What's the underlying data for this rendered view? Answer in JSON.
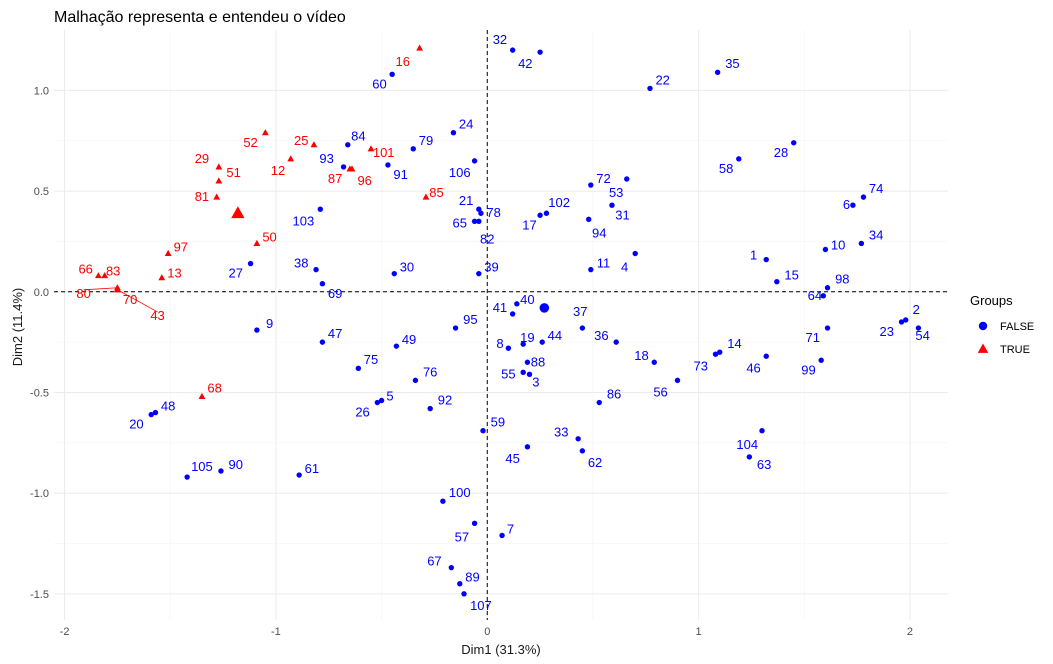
{
  "chart_data": {
    "type": "scatter",
    "title": "Malhação representa e entendeu o vídeo",
    "xlabel": "Dim1 (31.3%)",
    "ylabel": "Dim2 (11.4%)",
    "xlim": [
      -2.05,
      2.18
    ],
    "ylim": [
      -1.63,
      1.3
    ],
    "xticks": [
      -2,
      -1,
      0,
      1,
      2
    ],
    "yticks": [
      -1.5,
      -1.0,
      -0.5,
      0.0,
      0.5,
      1.0
    ],
    "xtick_labels": [
      "-2",
      "-1",
      "0",
      "1",
      "2"
    ],
    "ytick_labels": [
      "-1.5",
      "-1.0",
      "-0.5",
      "0.0",
      "0.5",
      "1.0"
    ],
    "reference_lines": {
      "x": 0,
      "y": 0
    },
    "grid": true,
    "legend": {
      "title": "Groups",
      "position": "right",
      "entries": [
        "FALSE",
        "TRUE"
      ]
    },
    "colors": {
      "FALSE": "#0000ff",
      "TRUE": "#ff0000"
    },
    "centroids": [
      {
        "group": "FALSE",
        "x": 0.27,
        "y": -0.08
      },
      {
        "group": "TRUE",
        "x": -1.18,
        "y": 0.39
      }
    ],
    "series": [
      {
        "name": "FALSE",
        "points": [
          {
            "id": "32",
            "x": 0.12,
            "y": 1.2,
            "lx": 0.06,
            "ly": 1.25
          },
          {
            "id": "42",
            "x": 0.25,
            "y": 1.19,
            "lx": 0.18,
            "ly": 1.13
          },
          {
            "id": "35",
            "x": 1.09,
            "y": 1.09,
            "lx": 1.16,
            "ly": 1.13
          },
          {
            "id": "60",
            "x": -0.45,
            "y": 1.08,
            "lx": -0.51,
            "ly": 1.03
          },
          {
            "id": "22",
            "x": 0.77,
            "y": 1.01,
            "lx": 0.83,
            "ly": 1.05
          },
          {
            "id": "24",
            "x": -0.16,
            "y": 0.79,
            "lx": -0.1,
            "ly": 0.83
          },
          {
            "id": "28",
            "x": 1.45,
            "y": 0.74,
            "lx": 1.39,
            "ly": 0.69
          },
          {
            "id": "84",
            "x": -0.66,
            "y": 0.73,
            "lx": -0.61,
            "ly": 0.77
          },
          {
            "id": "79",
            "x": -0.35,
            "y": 0.71,
            "lx": -0.29,
            "ly": 0.75
          },
          {
            "id": "93",
            "x": -0.68,
            "y": 0.62,
            "lx": -0.76,
            "ly": 0.66
          },
          {
            "id": "106",
            "x": -0.06,
            "y": 0.65,
            "lx": -0.13,
            "ly": 0.59
          },
          {
            "id": "91",
            "x": -0.47,
            "y": 0.63,
            "lx": -0.41,
            "ly": 0.58
          },
          {
            "id": "58",
            "x": 1.19,
            "y": 0.66,
            "lx": 1.13,
            "ly": 0.61
          },
          {
            "id": "72",
            "x": 0.49,
            "y": 0.53,
            "lx": 0.55,
            "ly": 0.56
          },
          {
            "id": "53",
            "x": 0.66,
            "y": 0.56,
            "lx": 0.61,
            "ly": 0.49
          },
          {
            "id": "74",
            "x": 1.78,
            "y": 0.47,
            "lx": 1.84,
            "ly": 0.51
          },
          {
            "id": "6",
            "x": 1.73,
            "y": 0.43,
            "lx": 1.7,
            "ly": 0.43
          },
          {
            "id": "21",
            "x": -0.04,
            "y": 0.41,
            "lx": -0.1,
            "ly": 0.45
          },
          {
            "id": "102",
            "x": 0.28,
            "y": 0.39,
            "lx": 0.34,
            "ly": 0.44
          },
          {
            "id": "31",
            "x": 0.59,
            "y": 0.43,
            "lx": 0.64,
            "ly": 0.38
          },
          {
            "id": "78",
            "x": -0.03,
            "y": 0.39,
            "lx": 0.03,
            "ly": 0.39
          },
          {
            "id": "103",
            "x": -0.79,
            "y": 0.41,
            "lx": -0.87,
            "ly": 0.35
          },
          {
            "id": "17",
            "x": 0.25,
            "y": 0.38,
            "lx": 0.2,
            "ly": 0.33
          },
          {
            "id": "65",
            "x": -0.06,
            "y": 0.35,
            "lx": -0.13,
            "ly": 0.34
          },
          {
            "id": "94",
            "x": 0.48,
            "y": 0.36,
            "lx": 0.53,
            "ly": 0.29
          },
          {
            "id": "82",
            "x": -0.04,
            "y": 0.35,
            "lx": 0.0,
            "ly": 0.26
          },
          {
            "id": "34",
            "x": 1.77,
            "y": 0.24,
            "lx": 1.84,
            "ly": 0.28
          },
          {
            "id": "10",
            "x": 1.6,
            "y": 0.21,
            "lx": 1.66,
            "ly": 0.23
          },
          {
            "id": "1",
            "x": 1.32,
            "y": 0.16,
            "lx": 1.26,
            "ly": 0.18
          },
          {
            "id": "11",
            "x": 0.49,
            "y": 0.11,
            "lx": 0.55,
            "ly": 0.14
          },
          {
            "id": "4",
            "x": 0.7,
            "y": 0.19,
            "lx": 0.65,
            "ly": 0.12
          },
          {
            "id": "27",
            "x": -1.12,
            "y": 0.14,
            "lx": -1.19,
            "ly": 0.09
          },
          {
            "id": "38",
            "x": -0.81,
            "y": 0.11,
            "lx": -0.88,
            "ly": 0.14
          },
          {
            "id": "30",
            "x": -0.44,
            "y": 0.09,
            "lx": -0.38,
            "ly": 0.12
          },
          {
            "id": "39",
            "x": -0.04,
            "y": 0.09,
            "lx": 0.02,
            "ly": 0.12
          },
          {
            "id": "15",
            "x": 1.37,
            "y": 0.05,
            "lx": 1.44,
            "ly": 0.08
          },
          {
            "id": "98",
            "x": 1.61,
            "y": 0.02,
            "lx": 1.68,
            "ly": 0.06
          },
          {
            "id": "64",
            "x": 1.59,
            "y": -0.02,
            "lx": 1.55,
            "ly": -0.02
          },
          {
            "id": "69",
            "x": -0.78,
            "y": 0.04,
            "lx": -0.72,
            "ly": -0.01
          },
          {
            "id": "40",
            "x": 0.14,
            "y": -0.06,
            "lx": 0.19,
            "ly": -0.04
          },
          {
            "id": "41",
            "x": 0.12,
            "y": -0.11,
            "lx": 0.06,
            "ly": -0.08
          },
          {
            "id": "37",
            "x": 0.45,
            "y": -0.18,
            "lx": 0.44,
            "ly": -0.1
          },
          {
            "id": "95",
            "x": -0.15,
            "y": -0.18,
            "lx": -0.08,
            "ly": -0.14
          },
          {
            "id": "9",
            "x": -1.09,
            "y": -0.19,
            "lx": -1.03,
            "ly": -0.16
          },
          {
            "id": "71",
            "x": 1.61,
            "y": -0.18,
            "lx": 1.54,
            "ly": -0.23
          },
          {
            "id": "2",
            "x": 1.98,
            "y": -0.14,
            "lx": 2.03,
            "ly": -0.09
          },
          {
            "id": "23",
            "x": 1.96,
            "y": -0.15,
            "lx": 1.89,
            "ly": -0.2
          },
          {
            "id": "54",
            "x": 2.04,
            "y": -0.18,
            "lx": 2.06,
            "ly": -0.22
          },
          {
            "id": "47",
            "x": -0.78,
            "y": -0.25,
            "lx": -0.72,
            "ly": -0.21
          },
          {
            "id": "36",
            "x": 0.61,
            "y": -0.25,
            "lx": 0.54,
            "ly": -0.22
          },
          {
            "id": "19",
            "x": 0.17,
            "y": -0.26,
            "lx": 0.19,
            "ly": -0.23
          },
          {
            "id": "44",
            "x": 0.26,
            "y": -0.25,
            "lx": 0.32,
            "ly": -0.22
          },
          {
            "id": "8",
            "x": 0.1,
            "y": -0.28,
            "lx": 0.06,
            "ly": -0.26
          },
          {
            "id": "49",
            "x": -0.43,
            "y": -0.27,
            "lx": -0.37,
            "ly": -0.24
          },
          {
            "id": "14",
            "x": 1.1,
            "y": -0.3,
            "lx": 1.17,
            "ly": -0.26
          },
          {
            "id": "18",
            "x": 0.79,
            "y": -0.35,
            "lx": 0.73,
            "ly": -0.32
          },
          {
            "id": "88",
            "x": 0.19,
            "y": -0.35,
            "lx": 0.24,
            "ly": -0.35
          },
          {
            "id": "75",
            "x": -0.61,
            "y": -0.38,
            "lx": -0.55,
            "ly": -0.34
          },
          {
            "id": "46",
            "x": 1.32,
            "y": -0.32,
            "lx": 1.26,
            "ly": -0.38
          },
          {
            "id": "73",
            "x": 1.08,
            "y": -0.31,
            "lx": 1.01,
            "ly": -0.37
          },
          {
            "id": "99",
            "x": 1.58,
            "y": -0.34,
            "lx": 1.52,
            "ly": -0.39
          },
          {
            "id": "55",
            "x": 0.17,
            "y": -0.4,
            "lx": 0.1,
            "ly": -0.41
          },
          {
            "id": "76",
            "x": -0.34,
            "y": -0.44,
            "lx": -0.27,
            "ly": -0.4
          },
          {
            "id": "3",
            "x": 0.2,
            "y": -0.41,
            "lx": 0.23,
            "ly": -0.45
          },
          {
            "id": "56",
            "x": 0.9,
            "y": -0.44,
            "lx": 0.82,
            "ly": -0.5
          },
          {
            "id": "86",
            "x": 0.53,
            "y": -0.55,
            "lx": 0.6,
            "ly": -0.51
          },
          {
            "id": "5",
            "x": -0.5,
            "y": -0.54,
            "lx": -0.46,
            "ly": -0.52
          },
          {
            "id": "92",
            "x": -0.27,
            "y": -0.58,
            "lx": -0.2,
            "ly": -0.54
          },
          {
            "id": "26",
            "x": -0.52,
            "y": -0.55,
            "lx": -0.59,
            "ly": -0.6
          },
          {
            "id": "48",
            "x": -1.57,
            "y": -0.6,
            "lx": -1.51,
            "ly": -0.57
          },
          {
            "id": "20",
            "x": -1.59,
            "y": -0.61,
            "lx": -1.66,
            "ly": -0.66
          },
          {
            "id": "59",
            "x": -0.02,
            "y": -0.69,
            "lx": 0.05,
            "ly": -0.65
          },
          {
            "id": "33",
            "x": 0.43,
            "y": -0.73,
            "lx": 0.35,
            "ly": -0.7
          },
          {
            "id": "104",
            "x": 1.3,
            "y": -0.69,
            "lx": 1.23,
            "ly": -0.76
          },
          {
            "id": "45",
            "x": 0.19,
            "y": -0.77,
            "lx": 0.12,
            "ly": -0.83
          },
          {
            "id": "62",
            "x": 0.45,
            "y": -0.79,
            "lx": 0.51,
            "ly": -0.85
          },
          {
            "id": "63",
            "x": 1.24,
            "y": -0.82,
            "lx": 1.31,
            "ly": -0.86
          },
          {
            "id": "90",
            "x": -1.26,
            "y": -0.89,
            "lx": -1.19,
            "ly": -0.86
          },
          {
            "id": "105",
            "x": -1.42,
            "y": -0.92,
            "lx": -1.35,
            "ly": -0.87
          },
          {
            "id": "61",
            "x": -0.89,
            "y": -0.91,
            "lx": -0.83,
            "ly": -0.88
          },
          {
            "id": "100",
            "x": -0.21,
            "y": -1.04,
            "lx": -0.13,
            "ly": -1.0
          },
          {
            "id": "7",
            "x": 0.07,
            "y": -1.21,
            "lx": 0.11,
            "ly": -1.18
          },
          {
            "id": "57",
            "x": -0.06,
            "y": -1.15,
            "lx": -0.12,
            "ly": -1.22
          },
          {
            "id": "67",
            "x": -0.17,
            "y": -1.37,
            "lx": -0.25,
            "ly": -1.34
          },
          {
            "id": "89",
            "x": -0.13,
            "y": -1.45,
            "lx": -0.07,
            "ly": -1.42
          },
          {
            "id": "107",
            "x": -0.11,
            "y": -1.5,
            "lx": -0.03,
            "ly": -1.56
          }
        ]
      },
      {
        "name": "TRUE",
        "points": [
          {
            "id": "16",
            "x": -0.32,
            "y": 1.21,
            "lx": -0.4,
            "ly": 1.14
          },
          {
            "id": "52",
            "x": -1.05,
            "y": 0.79,
            "lx": -1.12,
            "ly": 0.74
          },
          {
            "id": "25",
            "x": -0.82,
            "y": 0.73,
            "lx": -0.88,
            "ly": 0.75
          },
          {
            "id": "101",
            "x": -0.55,
            "y": 0.71,
            "lx": -0.49,
            "ly": 0.69
          },
          {
            "id": "12",
            "x": -0.93,
            "y": 0.66,
            "lx": -0.99,
            "ly": 0.6
          },
          {
            "id": "29",
            "x": -1.27,
            "y": 0.62,
            "lx": -1.35,
            "ly": 0.66
          },
          {
            "id": "51",
            "x": -1.27,
            "y": 0.55,
            "lx": -1.2,
            "ly": 0.59
          },
          {
            "id": "87",
            "x": -0.64,
            "y": 0.61,
            "lx": -0.72,
            "ly": 0.56
          },
          {
            "id": "96",
            "x": -0.65,
            "y": 0.61,
            "lx": -0.58,
            "ly": 0.55
          },
          {
            "id": "85",
            "x": -0.29,
            "y": 0.47,
            "lx": -0.24,
            "ly": 0.49
          },
          {
            "id": "81",
            "x": -1.28,
            "y": 0.47,
            "lx": -1.35,
            "ly": 0.47
          },
          {
            "id": "50",
            "x": -1.09,
            "y": 0.24,
            "lx": -1.03,
            "ly": 0.27
          },
          {
            "id": "97",
            "x": -1.51,
            "y": 0.19,
            "lx": -1.45,
            "ly": 0.22
          },
          {
            "id": "66",
            "x": -1.84,
            "y": 0.08,
            "lx": -1.9,
            "ly": 0.11
          },
          {
            "id": "83",
            "x": -1.81,
            "y": 0.08,
            "lx": -1.77,
            "ly": 0.1
          },
          {
            "id": "13",
            "x": -1.54,
            "y": 0.07,
            "lx": -1.48,
            "ly": 0.09
          },
          {
            "id": "80",
            "x": -1.75,
            "y": 0.02,
            "lx": -1.91,
            "ly": -0.01
          },
          {
            "id": "70",
            "x": -1.75,
            "y": 0.01,
            "lx": -1.69,
            "ly": -0.04
          },
          {
            "id": "43",
            "x": -1.75,
            "y": 0.01,
            "lx": -1.56,
            "ly": -0.12
          },
          {
            "id": "68",
            "x": -1.35,
            "y": -0.52,
            "lx": -1.29,
            "ly": -0.48
          }
        ]
      }
    ]
  }
}
